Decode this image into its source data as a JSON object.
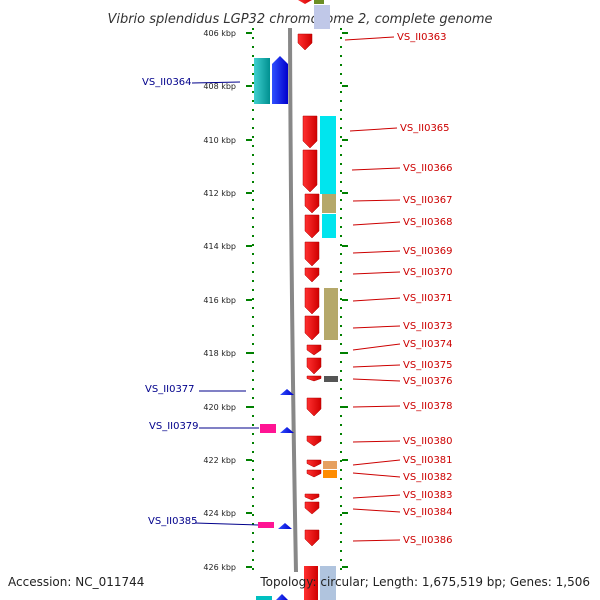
{
  "title": "Vibrio splendidus LGP32 chromosome 2, complete genome",
  "footer": {
    "accession": "Accession: NC_011744",
    "summary": "Topology: circular; Length: 1,675,519 bp; Genes: 1,506"
  },
  "colors": {
    "backbone": "#888888",
    "tick": "#008000",
    "forward_label": "#00008b",
    "reverse_label": "#cc0000"
  },
  "ticks": [
    "406 kbp",
    "408 kbp",
    "410 kbp",
    "412 kbp",
    "414 kbp",
    "416 kbp",
    "418 kbp",
    "420 kbp",
    "422 kbp",
    "424 kbp",
    "426 kbp"
  ],
  "labels": [
    {
      "text": "VS_II0363",
      "strand": "reverse"
    },
    {
      "text": "VS_II0364",
      "strand": "forward"
    },
    {
      "text": "VS_II0365",
      "strand": "reverse"
    },
    {
      "text": "VS_II0366",
      "strand": "reverse"
    },
    {
      "text": "VS_II0367",
      "strand": "reverse"
    },
    {
      "text": "VS_II0368",
      "strand": "reverse"
    },
    {
      "text": "VS_II0369",
      "strand": "reverse"
    },
    {
      "text": "VS_II0370",
      "strand": "reverse"
    },
    {
      "text": "VS_II0371",
      "strand": "reverse"
    },
    {
      "text": "VS_II0373",
      "strand": "reverse"
    },
    {
      "text": "VS_II0374",
      "strand": "reverse"
    },
    {
      "text": "VS_II0375",
      "strand": "reverse"
    },
    {
      "text": "VS_II0376",
      "strand": "reverse"
    },
    {
      "text": "VS_II0377",
      "strand": "forward"
    },
    {
      "text": "VS_II0378",
      "strand": "reverse"
    },
    {
      "text": "VS_II0379",
      "strand": "forward"
    },
    {
      "text": "VS_II0380",
      "strand": "reverse"
    },
    {
      "text": "VS_II0381",
      "strand": "reverse"
    },
    {
      "text": "VS_II0382",
      "strand": "reverse"
    },
    {
      "text": "VS_II0383",
      "strand": "reverse"
    },
    {
      "text": "VS_II0384",
      "strand": "reverse"
    },
    {
      "text": "VS_II0385",
      "strand": "forward"
    },
    {
      "text": "VS_II0386",
      "strand": "reverse"
    }
  ]
}
